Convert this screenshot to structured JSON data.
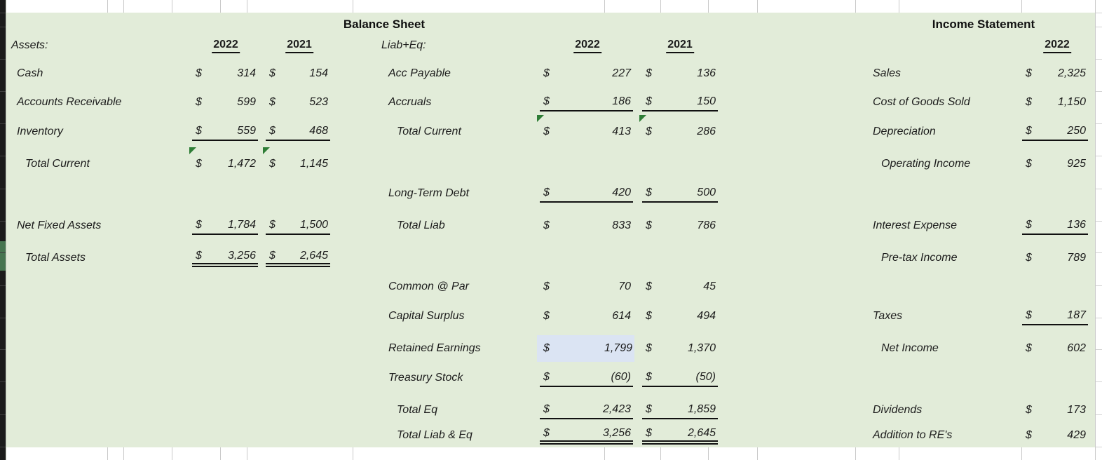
{
  "sheet": {
    "balance_sheet_title": "Balance Sheet",
    "income_statement_title": "Income Statement"
  },
  "assets": {
    "header": "Assets:",
    "years": [
      "2022",
      "2021"
    ],
    "currency": "$",
    "rows": [
      {
        "label": "Cash",
        "indent": 1,
        "v1": "314",
        "v2": "154",
        "underline": "none"
      },
      {
        "label": "Accounts Receivable",
        "indent": 1,
        "v1": "599",
        "v2": "523",
        "underline": "none"
      },
      {
        "label": "Inventory",
        "indent": 1,
        "v1": "559",
        "v2": "468",
        "underline": "single"
      },
      {
        "label": "Total Current",
        "indent": 2,
        "v1": "1,472",
        "v2": "1,145",
        "underline": "none",
        "flags": true
      },
      {
        "label": "Net Fixed Assets",
        "indent": 1,
        "v1": "1,784",
        "v2": "1,500",
        "underline": "single"
      },
      {
        "label": "Total Assets",
        "indent": 2,
        "v1": "3,256",
        "v2": "2,645",
        "underline": "double"
      }
    ]
  },
  "liabilities_equity": {
    "header": "Liab+Eq:",
    "years": [
      "2022",
      "2021"
    ],
    "currency": "$",
    "rows": [
      {
        "label": "Acc Payable",
        "indent": 1,
        "v1": "227",
        "v2": "136",
        "underline": "none"
      },
      {
        "label": "Accruals",
        "indent": 1,
        "v1": "186",
        "v2": "150",
        "underline": "single"
      },
      {
        "label": "Total Current",
        "indent": 2,
        "v1": "413",
        "v2": "286",
        "underline": "none",
        "flags": true
      },
      {
        "label": "Long-Term Debt",
        "indent": 1,
        "v1": "420",
        "v2": "500",
        "underline": "single"
      },
      {
        "label": "Total Liab",
        "indent": 2,
        "v1": "833",
        "v2": "786",
        "underline": "none"
      },
      {
        "label": "Common @ Par",
        "indent": 1,
        "v1": "70",
        "v2": "45",
        "underline": "none"
      },
      {
        "label": "Capital Surplus",
        "indent": 1,
        "v1": "614",
        "v2": "494",
        "underline": "none"
      },
      {
        "label": "Retained Earnings",
        "indent": 1,
        "v1": "1,799",
        "v2": "1,370",
        "underline": "none",
        "highlight_v1": true
      },
      {
        "label": "Treasury Stock",
        "indent": 1,
        "v1": "(60)",
        "v2": "(50)",
        "underline": "single"
      },
      {
        "label": "Total Eq",
        "indent": 2,
        "v1": "2,423",
        "v2": "1,859",
        "underline": "single"
      },
      {
        "label": "Total Liab & Eq",
        "indent": 2,
        "v1": "3,256",
        "v2": "2,645",
        "underline": "double"
      }
    ]
  },
  "income_statement": {
    "year": "2022",
    "currency": "$",
    "rows": [
      {
        "label": "Sales",
        "indent": 1,
        "v1": "2,325",
        "underline": "none"
      },
      {
        "label": "Cost of Goods Sold",
        "indent": 1,
        "v1": "1,150",
        "underline": "none"
      },
      {
        "label": "Depreciation",
        "indent": 1,
        "v1": "250",
        "underline": "single"
      },
      {
        "label": "Operating Income",
        "indent": 2,
        "v1": "925",
        "underline": "none"
      },
      {
        "label": "Interest Expense",
        "indent": 1,
        "v1": "136",
        "underline": "single"
      },
      {
        "label": "Pre-tax Income",
        "indent": 2,
        "v1": "789",
        "underline": "none"
      },
      {
        "label": "Taxes",
        "indent": 1,
        "v1": "187",
        "underline": "single"
      },
      {
        "label": "Net Income",
        "indent": 2,
        "v1": "602",
        "underline": "none"
      },
      {
        "label": "Dividends",
        "indent": 1,
        "v1": "173",
        "underline": "none"
      },
      {
        "label": "Addition to RE's",
        "indent": 1,
        "v1": "429",
        "underline": "none"
      }
    ]
  },
  "colors": {
    "sheet_bg": "#e2ecd9",
    "selected_cell_bg": "#dbe4f3",
    "flag_green": "#2e7d36",
    "row_marker_green": "#467550",
    "gridline_gray": "#c9c9c9"
  }
}
